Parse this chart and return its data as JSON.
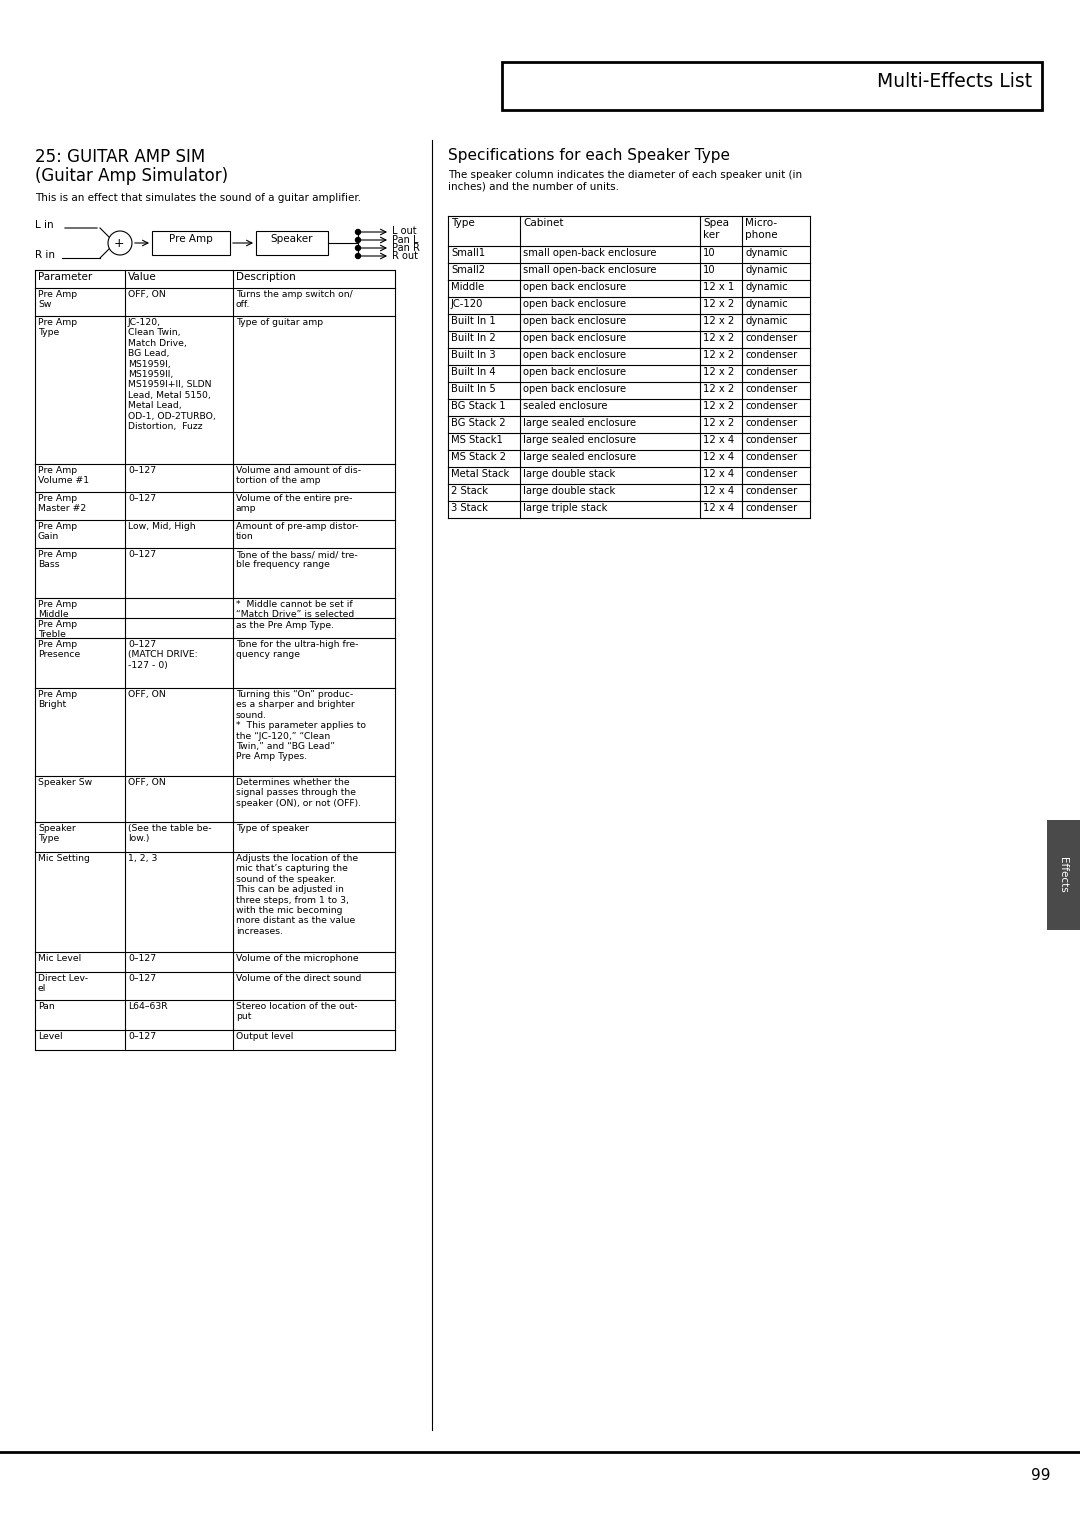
{
  "page_title": "Multi-Effects List",
  "section_number": "25: GUITAR AMP SIM",
  "section_subtitle": "(Guitar Amp Simulator)",
  "section_intro": "This is an effect that simulates the sound of a guitar amplifier.",
  "spec_title": "Specifications for each Speaker Type",
  "spec_intro": "The speaker column indicates the diameter of each speaker unit (in\ninches) and the number of units.",
  "speaker_table_headers": [
    "Type",
    "Cabinet",
    "Spea\nker",
    "Micro-\nphone"
  ],
  "speaker_table_rows": [
    [
      "Small1",
      "small open-back enclosure",
      "10",
      "dynamic"
    ],
    [
      "Small2",
      "small open-back enclosure",
      "10",
      "dynamic"
    ],
    [
      "Middle",
      "open back enclosure",
      "12 x 1",
      "dynamic"
    ],
    [
      "JC-120",
      "open back enclosure",
      "12 x 2",
      "dynamic"
    ],
    [
      "Built In 1",
      "open back enclosure",
      "12 x 2",
      "dynamic"
    ],
    [
      "Built In 2",
      "open back enclosure",
      "12 x 2",
      "condenser"
    ],
    [
      "Built In 3",
      "open back enclosure",
      "12 x 2",
      "condenser"
    ],
    [
      "Built In 4",
      "open back enclosure",
      "12 x 2",
      "condenser"
    ],
    [
      "Built In 5",
      "open back enclosure",
      "12 x 2",
      "condenser"
    ],
    [
      "BG Stack 1",
      "sealed enclosure",
      "12 x 2",
      "condenser"
    ],
    [
      "BG Stack 2",
      "large sealed enclosure",
      "12 x 2",
      "condenser"
    ],
    [
      "MS Stack1",
      "large sealed enclosure",
      "12 x 4",
      "condenser"
    ],
    [
      "MS Stack 2",
      "large sealed enclosure",
      "12 x 4",
      "condenser"
    ],
    [
      "Metal Stack",
      "large double stack",
      "12 x 4",
      "condenser"
    ],
    [
      "2 Stack",
      "large double stack",
      "12 x 4",
      "condenser"
    ],
    [
      "3 Stack",
      "large triple stack",
      "12 x 4",
      "condenser"
    ]
  ],
  "param_table_headers": [
    "Parameter",
    "Value",
    "Description"
  ],
  "param_table_rows": [
    [
      "Pre Amp\nSw",
      "OFF, ON",
      "Turns the amp switch on/\noff."
    ],
    [
      "Pre Amp\nType",
      "JC-120,\nClean Twin,\nMatch Drive,\nBG Lead,\nMS1959I,\nMS1959II,\nMS1959I+II, SLDN\nLead, Metal 5150,\nMetal Lead,\nOD-1, OD-2TURBO,\nDistortion,  Fuzz",
      "Type of guitar amp"
    ],
    [
      "Pre Amp\nVolume #1",
      "0–127",
      "Volume and amount of dis-\ntortion of the amp"
    ],
    [
      "Pre Amp\nMaster #2",
      "0–127",
      "Volume of the entire pre-\namp"
    ],
    [
      "Pre Amp\nGain",
      "Low, Mid, High",
      "Amount of pre-amp distor-\ntion"
    ],
    [
      "Pre Amp\nBass",
      "0–127",
      "Tone of the bass/ mid/ tre-\nble frequency range"
    ],
    [
      "Pre Amp\nMiddle",
      "",
      "*  Middle cannot be set if\n“Match Drive” is selected\nas the Pre Amp Type."
    ],
    [
      "Pre Amp\nTreble",
      "",
      ""
    ],
    [
      "Pre Amp\nPresence",
      "0–127\n(MATCH DRIVE:\n-127 - 0)",
      "Tone for the ultra-high fre-\nquency range"
    ],
    [
      "Pre Amp\nBright",
      "OFF, ON",
      "Turning this “On” produc-\nes a sharper and brighter\nsound.\n*  This parameter applies to\nthe “JC-120,” “Clean\nTwin,” and “BG Lead”\nPre Amp Types."
    ],
    [
      "Speaker Sw",
      "OFF, ON",
      "Determines whether the\nsignal passes through the\nspeaker (ON), or not (OFF)."
    ],
    [
      "Speaker\nType",
      "(See the table be-\nlow.)",
      "Type of speaker"
    ],
    [
      "Mic Setting",
      "1, 2, 3",
      "Adjusts the location of the\nmic that’s capturing the\nsound of the speaker.\nThis can be adjusted in\nthree steps, from 1 to 3,\nwith the mic becoming\nmore distant as the value\nincreases."
    ],
    [
      "Mic Level",
      "0–127",
      "Volume of the microphone"
    ],
    [
      "Direct Lev-\nel",
      "0–127",
      "Volume of the direct sound"
    ],
    [
      "Pan",
      "L64–63R",
      "Stereo location of the out-\nput"
    ],
    [
      "Level",
      "0–127",
      "Output level"
    ]
  ],
  "param_row_heights": [
    28,
    148,
    28,
    28,
    28,
    50,
    20,
    20,
    50,
    88,
    46,
    30,
    100,
    20,
    28,
    30,
    20
  ],
  "bg_color": "#ffffff",
  "page_number": "99",
  "effects_tab_color": "#4a4a4a",
  "effects_tab_text": "Effects"
}
